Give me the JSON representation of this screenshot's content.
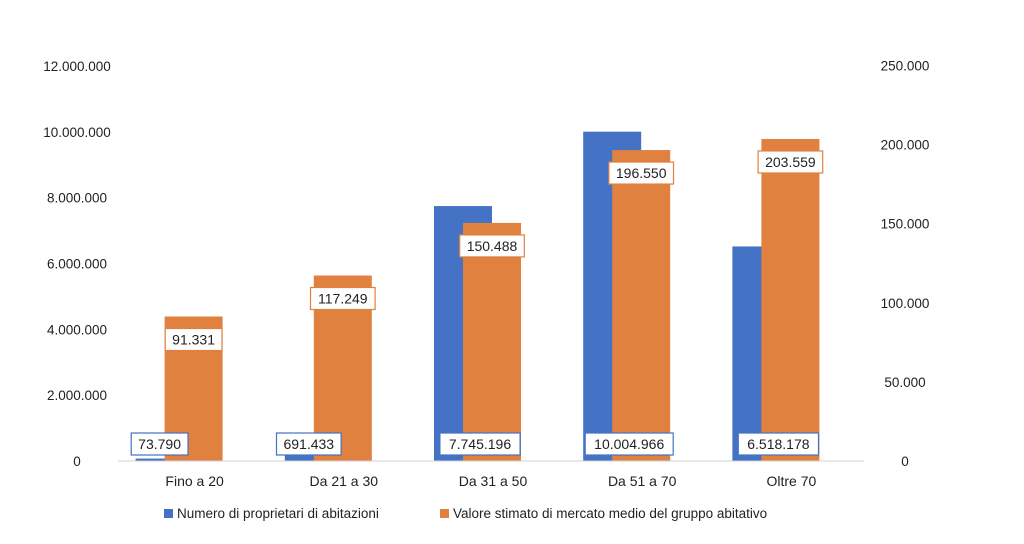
{
  "chart_data": {
    "type": "bar",
    "categories": [
      "Fino a 20",
      "Da 21 a 30",
      "Da 31 a 50",
      "Da 51 a 70",
      "Oltre 70"
    ],
    "series": [
      {
        "name": "Numero di proprietari di abitazioni",
        "axis": "left",
        "color": "#4472C4",
        "values": [
          73790,
          691433,
          7745196,
          10004966,
          6518178
        ],
        "labels": [
          "73.790",
          "691.433",
          "7.745.196",
          "10.004.966",
          "6.518.178"
        ]
      },
      {
        "name": "Valore stimato di mercato medio del gruppo abitativo",
        "axis": "right",
        "color": "#E0813F",
        "values": [
          91331,
          117249,
          150488,
          196550,
          203559
        ],
        "labels": [
          "91.331",
          "117.249",
          "150.488",
          "196.550",
          "203.559"
        ]
      }
    ],
    "y_left": {
      "lim": [
        0,
        12000000
      ],
      "ticks": [
        0,
        2000000,
        4000000,
        6000000,
        8000000,
        10000000,
        12000000
      ],
      "tick_labels": [
        "0",
        "2.000.000",
        "4.000.000",
        "6.000.000",
        "8.000.000",
        "10.000.000",
        "12.000.000"
      ]
    },
    "y_right": {
      "lim": [
        0,
        250000
      ],
      "ticks": [
        0,
        50000,
        100000,
        150000,
        200000,
        250000
      ],
      "tick_labels": [
        "0",
        "50.000",
        "100.000",
        "150.000",
        "200.000",
        "250.000"
      ]
    },
    "grid": false,
    "legend": "bottom"
  }
}
